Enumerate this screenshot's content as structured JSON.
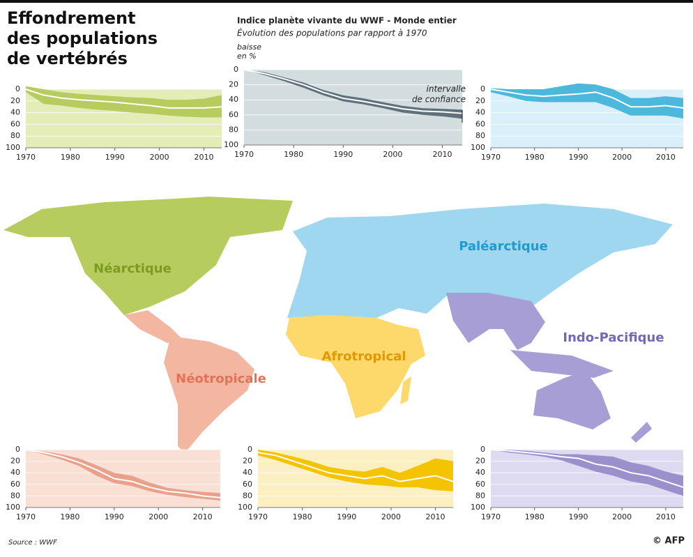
{
  "header": {
    "title": [
      "Effondrement",
      "des populations",
      "de vertébrés"
    ]
  },
  "map": {
    "labels": [
      "Néarctique",
      "Paléarctique",
      "Indo-Pacifique",
      "Afrotropical",
      "Néotropicale"
    ],
    "colors": [
      "#b7cc5e",
      "#9fd6f0",
      "#a89ed6",
      "#fcd96a",
      "#f2b6a1"
    ],
    "label_colors": [
      "#7d9b1f",
      "#1e9ad0",
      "#7467b8",
      "#e39700",
      "#e2735a"
    ]
  },
  "chart_data": [
    {
      "type": "band",
      "x": [
        1970,
        1974,
        1978,
        1982,
        1986,
        1990,
        1994,
        1998,
        2002,
        2006,
        2010,
        2014
      ],
      "values": [
        0,
        10,
        15,
        18,
        20,
        22,
        25,
        28,
        32,
        32,
        32,
        30
      ],
      "lower": [
        -5,
        0,
        5,
        8,
        10,
        12,
        14,
        15,
        18,
        18,
        16,
        10
      ],
      "upper": [
        5,
        25,
        28,
        32,
        35,
        37,
        40,
        42,
        45,
        47,
        48,
        48
      ],
      "color": "#b7cc5e",
      "background": "#e4edb6",
      "grid": true,
      "xlim": [
        1970,
        2014
      ],
      "xticks": [
        1970,
        1980,
        1990,
        2000,
        2010
      ],
      "ylim": [
        100,
        0
      ],
      "yticks": [
        0,
        20,
        40,
        60,
        80,
        100
      ]
    },
    {
      "type": "band",
      "title": "Indice planète vivante du WWF - Monde entier",
      "subtitle": "Évolution des populations par rapport à 1970",
      "y_label": [
        "baisse",
        "en %"
      ],
      "annotation": [
        "intervalle",
        "de confiance"
      ],
      "x": [
        1970,
        1974,
        1978,
        1982,
        1986,
        1990,
        1994,
        1998,
        2002,
        2006,
        2010,
        2014
      ],
      "values": [
        0,
        5,
        12,
        20,
        30,
        38,
        42,
        47,
        52,
        55,
        56,
        58
      ],
      "lower": [
        0,
        3,
        10,
        17,
        27,
        34,
        38,
        43,
        48,
        51,
        52,
        53
      ],
      "upper": [
        0,
        7,
        15,
        24,
        34,
        42,
        46,
        51,
        57,
        60,
        62,
        65
      ],
      "color": "#5f727c",
      "background": "#d3dde0",
      "grid": true,
      "xlim": [
        1970,
        2014
      ],
      "xticks": [
        1970,
        1980,
        1990,
        2000,
        2010
      ],
      "ylim": [
        100,
        0
      ],
      "yticks": [
        0,
        20,
        40,
        60,
        80,
        100
      ]
    },
    {
      "type": "band",
      "x": [
        1970,
        1974,
        1978,
        1982,
        1986,
        1990,
        1994,
        1998,
        2002,
        2006,
        2010,
        2014
      ],
      "values": [
        0,
        5,
        10,
        12,
        10,
        8,
        5,
        15,
        30,
        30,
        28,
        32
      ],
      "lower": [
        -2,
        0,
        0,
        0,
        -5,
        -10,
        -8,
        0,
        15,
        15,
        12,
        15
      ],
      "upper": [
        5,
        12,
        20,
        22,
        22,
        22,
        22,
        32,
        45,
        45,
        45,
        50
      ],
      "color": "#4cb8dc",
      "background": "#d9eff9",
      "grid": true,
      "xlim": [
        1970,
        2014
      ],
      "xticks": [
        1970,
        1980,
        1990,
        2000,
        2010
      ],
      "ylim": [
        100,
        0
      ],
      "yticks": [
        0,
        20,
        40,
        60,
        80,
        100
      ]
    },
    {
      "type": "band",
      "x": [
        1970,
        1974,
        1978,
        1982,
        1986,
        1990,
        1994,
        1998,
        2002,
        2006,
        2010,
        2014
      ],
      "values": [
        0,
        5,
        12,
        22,
        35,
        50,
        55,
        65,
        72,
        75,
        80,
        83
      ],
      "lower": [
        0,
        3,
        8,
        15,
        27,
        40,
        45,
        57,
        66,
        70,
        73,
        75
      ],
      "upper": [
        0,
        8,
        17,
        28,
        45,
        58,
        63,
        72,
        78,
        82,
        85,
        88
      ],
      "color": "#e8a28c",
      "background": "#fadfd5",
      "grid": true,
      "xlim": [
        1970,
        2014
      ],
      "xticks": [
        1970,
        1980,
        1990,
        2000,
        2010
      ],
      "ylim": [
        100,
        0
      ],
      "yticks": [
        0,
        20,
        40,
        60,
        80,
        100
      ]
    },
    {
      "type": "band",
      "x": [
        1970,
        1974,
        1978,
        1982,
        1986,
        1990,
        1994,
        1998,
        2002,
        2006,
        2010,
        2014
      ],
      "values": [
        5,
        10,
        20,
        30,
        40,
        45,
        50,
        45,
        55,
        50,
        45,
        55
      ],
      "lower": [
        0,
        5,
        12,
        20,
        30,
        35,
        38,
        30,
        40,
        28,
        15,
        20
      ],
      "upper": [
        10,
        18,
        28,
        38,
        48,
        55,
        60,
        62,
        65,
        65,
        70,
        72
      ],
      "color": "#f5c400",
      "background": "#fcefc2",
      "grid": true,
      "xlim": [
        1970,
        2014
      ],
      "xticks": [
        1970,
        1980,
        1990,
        2000,
        2010
      ],
      "ylim": [
        100,
        0
      ],
      "yticks": [
        0,
        20,
        40,
        60,
        80,
        100
      ]
    },
    {
      "type": "band",
      "x": [
        1970,
        1974,
        1978,
        1982,
        1986,
        1990,
        1994,
        1998,
        2002,
        2006,
        2010,
        2014
      ],
      "values": [
        0,
        2,
        5,
        8,
        12,
        15,
        25,
        30,
        40,
        45,
        55,
        65
      ],
      "lower": [
        0,
        0,
        2,
        5,
        8,
        8,
        10,
        12,
        22,
        28,
        38,
        45
      ],
      "upper": [
        0,
        5,
        8,
        12,
        18,
        28,
        38,
        45,
        55,
        60,
        70,
        80
      ],
      "color": "#9b90cc",
      "background": "#dedaf1",
      "grid": true,
      "xlim": [
        1970,
        2014
      ],
      "xticks": [
        1970,
        1980,
        1990,
        2000,
        2010
      ],
      "ylim": [
        100,
        0
      ],
      "yticks": [
        0,
        20,
        40,
        60,
        80,
        100
      ]
    }
  ],
  "footer": {
    "source": "Source : WWF",
    "credit": "© AFP"
  }
}
